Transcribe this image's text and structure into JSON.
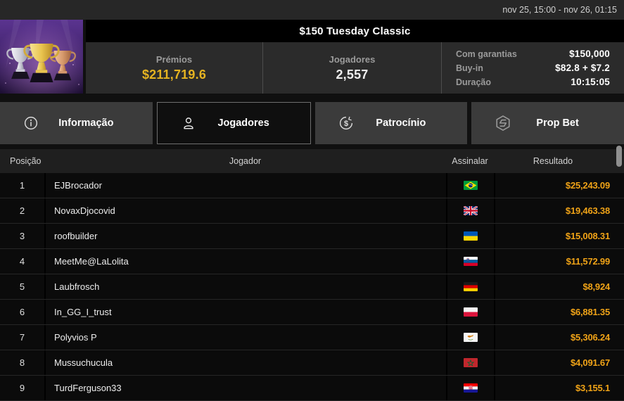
{
  "topbar": {
    "schedule": "nov 25, 15:00 - nov 26, 01:15"
  },
  "header": {
    "title": "$150 Tuesday Classic",
    "trophy_image": "three-trophies-purple-spotlights",
    "accent_color": "#e5b321",
    "stats": [
      {
        "label": "Prémios",
        "value": "$211,719.6",
        "gold": true
      },
      {
        "label": "Jogadores",
        "value": "2,557",
        "gold": false
      }
    ],
    "details": [
      {
        "label": "Com garantias",
        "value": "$150,000"
      },
      {
        "label": "Buy-in",
        "value": "$82.8 + $7.2"
      },
      {
        "label": "Duração",
        "value": "10:15:05"
      }
    ]
  },
  "tabs": [
    {
      "id": "informacao",
      "label": "Informação",
      "icon": "info-icon",
      "active": false
    },
    {
      "id": "jogadores",
      "label": "Jogadores",
      "icon": "person-icon",
      "active": true
    },
    {
      "id": "patrocinio",
      "label": "Patrocínio",
      "icon": "dollar-circle-icon",
      "active": false
    },
    {
      "id": "prop-bet",
      "label": "Prop Bet",
      "icon": "prop-bet-hexagon-icon",
      "active": false
    }
  ],
  "table": {
    "columns": [
      "Posição",
      "Jogador",
      "Assinalar",
      "Resultado"
    ],
    "result_color": "#f0a317",
    "rows": [
      {
        "position": "1",
        "player": "EJBrocador",
        "country": "brazil",
        "result": "$25,243.09"
      },
      {
        "position": "2",
        "player": "NovaxDjocovid",
        "country": "uk",
        "result": "$19,463.38"
      },
      {
        "position": "3",
        "player": "roofbuilder",
        "country": "ukraine",
        "result": "$15,008.31"
      },
      {
        "position": "4",
        "player": "MeetMe@LaLolita",
        "country": "slovenia",
        "result": "$11,572.99"
      },
      {
        "position": "5",
        "player": "Laubfrosch",
        "country": "germany",
        "result": "$8,924"
      },
      {
        "position": "6",
        "player": "In_GG_I_trust",
        "country": "poland",
        "result": "$6,881.35"
      },
      {
        "position": "7",
        "player": "Polyvios P",
        "country": "cyprus",
        "result": "$5,306.24"
      },
      {
        "position": "8",
        "player": "Mussuchucula",
        "country": "morocco",
        "result": "$4,091.67"
      },
      {
        "position": "9",
        "player": "TurdFerguson33",
        "country": "croatia",
        "result": "$3,155.1"
      }
    ]
  }
}
